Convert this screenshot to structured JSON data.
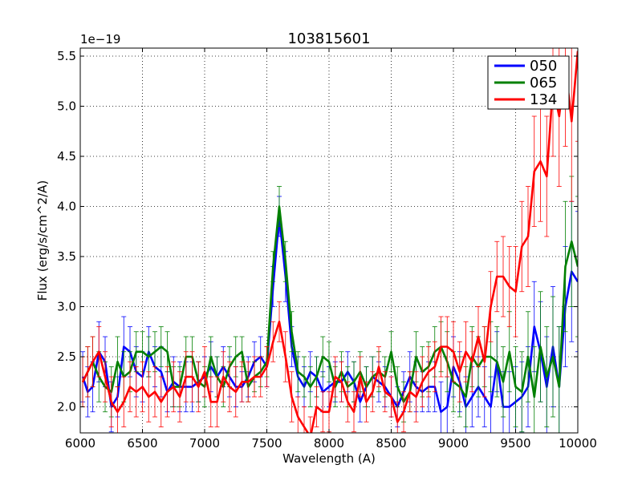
{
  "chart_data": {
    "type": "line",
    "title": "103815601",
    "xlabel": "Wavelength (A)",
    "ylabel": "Flux (erg/s/cm^2/A)",
    "y_scale_label": "1e−19",
    "xlim": [
      6000,
      10000
    ],
    "ylim": [
      1.74,
      5.58
    ],
    "xticks": [
      6000,
      6500,
      7000,
      7500,
      8000,
      8500,
      9000,
      9500,
      10000
    ],
    "xtick_labels": [
      "6000",
      "6500",
      "7000",
      "7500",
      "8000",
      "8500",
      "9000",
      "9500",
      "10000"
    ],
    "yticks": [
      2.0,
      2.5,
      3.0,
      3.5,
      4.0,
      4.5,
      5.0,
      5.5
    ],
    "ytick_labels": [
      "2.0",
      "2.5",
      "3.0",
      "3.5",
      "4.0",
      "4.5",
      "5.0",
      "5.5"
    ],
    "grid": true,
    "legend_position": "top-right",
    "series": [
      {
        "name": "050",
        "color": "#0000ff",
        "x": [
          6020,
          6060,
          6100,
          6150,
          6200,
          6250,
          6300,
          6350,
          6400,
          6450,
          6500,
          6550,
          6600,
          6650,
          6700,
          6750,
          6800,
          6850,
          6900,
          6950,
          7000,
          7050,
          7100,
          7150,
          7200,
          7250,
          7300,
          7350,
          7400,
          7450,
          7500,
          7550,
          7600,
          7650,
          7700,
          7750,
          7800,
          7850,
          7900,
          7950,
          8000,
          8050,
          8100,
          8150,
          8200,
          8250,
          8300,
          8350,
          8400,
          8450,
          8500,
          8550,
          8600,
          8650,
          8700,
          8750,
          8800,
          8850,
          8900,
          8950,
          9000,
          9050,
          9100,
          9150,
          9200,
          9250,
          9300,
          9350,
          9400,
          9450,
          9500,
          9550,
          9600,
          9650,
          9700,
          9750,
          9800,
          9850,
          9900,
          9950,
          10000
        ],
        "values": [
          2.3,
          2.15,
          2.2,
          2.55,
          2.45,
          2.0,
          2.1,
          2.6,
          2.55,
          2.35,
          2.3,
          2.55,
          2.4,
          2.35,
          2.15,
          2.25,
          2.2,
          2.2,
          2.2,
          2.25,
          2.3,
          2.4,
          2.3,
          2.4,
          2.3,
          2.2,
          2.2,
          2.3,
          2.45,
          2.5,
          2.4,
          3.2,
          3.9,
          3.3,
          2.6,
          2.3,
          2.2,
          2.35,
          2.3,
          2.15,
          2.2,
          2.25,
          2.25,
          2.35,
          2.25,
          2.05,
          2.2,
          2.3,
          2.25,
          2.2,
          2.1,
          2.0,
          2.15,
          2.3,
          2.2,
          2.15,
          2.2,
          2.2,
          1.95,
          2.0,
          2.4,
          2.25,
          2.0,
          2.1,
          2.2,
          2.1,
          2.0,
          2.45,
          2.0,
          2.0,
          2.05,
          2.1,
          2.2,
          2.8,
          2.55,
          2.2,
          2.6,
          2.2,
          3.0,
          3.35,
          3.25
        ],
        "errors": [
          0.25,
          0.25,
          0.25,
          0.3,
          0.25,
          0.25,
          0.2,
          0.3,
          0.25,
          0.25,
          0.25,
          0.25,
          0.2,
          0.25,
          0.2,
          0.25,
          0.25,
          0.25,
          0.25,
          0.2,
          0.2,
          0.25,
          0.2,
          0.2,
          0.2,
          0.2,
          0.15,
          0.2,
          0.2,
          0.2,
          0.2,
          0.2,
          0.2,
          0.25,
          0.2,
          0.2,
          0.2,
          0.2,
          0.2,
          0.2,
          0.2,
          0.2,
          0.2,
          0.2,
          0.2,
          0.2,
          0.2,
          0.2,
          0.2,
          0.2,
          0.2,
          0.2,
          0.2,
          0.25,
          0.25,
          0.2,
          0.25,
          0.25,
          0.3,
          0.3,
          0.3,
          0.3,
          0.3,
          0.3,
          0.3,
          0.3,
          0.3,
          0.3,
          0.35,
          0.35,
          0.35,
          0.35,
          0.4,
          0.45,
          0.5,
          0.5,
          0.6,
          0.6,
          0.6,
          0.7,
          0.7
        ]
      },
      {
        "name": "065",
        "color": "#008000",
        "x": [
          6020,
          6060,
          6100,
          6150,
          6200,
          6250,
          6300,
          6350,
          6400,
          6450,
          6500,
          6550,
          6600,
          6650,
          6700,
          6750,
          6800,
          6850,
          6900,
          6950,
          7000,
          7050,
          7100,
          7150,
          7200,
          7250,
          7300,
          7350,
          7400,
          7450,
          7500,
          7550,
          7600,
          7650,
          7700,
          7750,
          7800,
          7850,
          7900,
          7950,
          8000,
          8050,
          8100,
          8150,
          8200,
          8250,
          8300,
          8350,
          8400,
          8450,
          8500,
          8550,
          8600,
          8650,
          8700,
          8750,
          8800,
          8850,
          8900,
          8950,
          9000,
          9050,
          9100,
          9150,
          9200,
          9250,
          9300,
          9350,
          9400,
          9450,
          9500,
          9550,
          9600,
          9650,
          9700,
          9750,
          9800,
          9850,
          9900,
          9950,
          10000
        ],
        "values": [
          2.25,
          2.35,
          2.45,
          2.3,
          2.2,
          2.15,
          2.45,
          2.3,
          2.35,
          2.55,
          2.55,
          2.5,
          2.55,
          2.6,
          2.55,
          2.2,
          2.2,
          2.5,
          2.5,
          2.25,
          2.2,
          2.5,
          2.3,
          2.2,
          2.4,
          2.5,
          2.55,
          2.2,
          2.3,
          2.35,
          2.45,
          3.4,
          4.0,
          3.45,
          2.75,
          2.35,
          2.3,
          2.2,
          2.3,
          2.5,
          2.45,
          2.2,
          2.35,
          2.2,
          2.25,
          2.35,
          2.2,
          2.3,
          2.35,
          2.3,
          2.55,
          2.2,
          2.05,
          2.15,
          2.5,
          2.35,
          2.4,
          2.55,
          2.6,
          2.45,
          2.25,
          2.2,
          2.1,
          2.5,
          2.4,
          2.5,
          2.5,
          2.45,
          2.25,
          2.55,
          2.2,
          2.15,
          2.5,
          2.1,
          2.6,
          2.3,
          2.5,
          2.2,
          3.4,
          3.65,
          3.4
        ],
        "errors": [
          0.25,
          0.25,
          0.25,
          0.25,
          0.25,
          0.25,
          0.25,
          0.25,
          0.2,
          0.2,
          0.2,
          0.2,
          0.2,
          0.2,
          0.2,
          0.2,
          0.2,
          0.2,
          0.2,
          0.2,
          0.2,
          0.2,
          0.2,
          0.2,
          0.2,
          0.2,
          0.15,
          0.15,
          0.15,
          0.15,
          0.15,
          0.15,
          0.2,
          0.2,
          0.2,
          0.2,
          0.2,
          0.2,
          0.2,
          0.2,
          0.2,
          0.2,
          0.2,
          0.2,
          0.2,
          0.2,
          0.2,
          0.2,
          0.2,
          0.2,
          0.2,
          0.2,
          0.2,
          0.2,
          0.25,
          0.25,
          0.25,
          0.25,
          0.25,
          0.3,
          0.3,
          0.3,
          0.3,
          0.3,
          0.3,
          0.3,
          0.35,
          0.35,
          0.35,
          0.4,
          0.4,
          0.4,
          0.45,
          0.5,
          0.55,
          0.5,
          0.6,
          0.6,
          0.65,
          0.65,
          0.7
        ]
      },
      {
        "name": "134",
        "color": "#ff0000",
        "x": [
          6020,
          6060,
          6100,
          6150,
          6200,
          6250,
          6300,
          6350,
          6400,
          6450,
          6500,
          6550,
          6600,
          6650,
          6700,
          6750,
          6800,
          6850,
          6900,
          6950,
          7000,
          7050,
          7100,
          7150,
          7200,
          7250,
          7300,
          7350,
          7400,
          7450,
          7500,
          7550,
          7600,
          7650,
          7700,
          7750,
          7800,
          7850,
          7900,
          7950,
          8000,
          8050,
          8100,
          8150,
          8200,
          8250,
          8300,
          8350,
          8400,
          8450,
          8500,
          8550,
          8600,
          8650,
          8700,
          8750,
          8800,
          8850,
          8900,
          8950,
          9000,
          9050,
          9100,
          9150,
          9200,
          9250,
          9300,
          9350,
          9400,
          9450,
          9500,
          9550,
          9600,
          9650,
          9700,
          9750,
          9800,
          9850,
          9900,
          9950,
          10000
        ],
        "values": [
          2.25,
          2.35,
          2.45,
          2.55,
          2.3,
          2.05,
          1.95,
          2.05,
          2.2,
          2.15,
          2.2,
          2.1,
          2.15,
          2.05,
          2.15,
          2.2,
          2.1,
          2.3,
          2.3,
          2.2,
          2.35,
          2.05,
          2.05,
          2.3,
          2.2,
          2.15,
          2.25,
          2.25,
          2.3,
          2.3,
          2.4,
          2.65,
          2.85,
          2.5,
          2.1,
          1.9,
          1.8,
          1.7,
          2.0,
          1.95,
          1.95,
          2.3,
          2.25,
          2.05,
          1.95,
          2.3,
          2.05,
          2.15,
          2.4,
          2.15,
          2.1,
          1.85,
          1.95,
          2.15,
          2.1,
          2.25,
          2.35,
          2.4,
          2.6,
          2.6,
          2.55,
          2.35,
          2.55,
          2.45,
          2.7,
          2.45,
          3.0,
          3.3,
          3.3,
          3.2,
          3.15,
          3.6,
          3.7,
          4.35,
          4.45,
          4.3,
          5.2,
          4.9,
          5.4,
          4.85,
          5.55
        ],
        "errors": [
          0.25,
          0.25,
          0.25,
          0.25,
          0.25,
          0.25,
          0.25,
          0.25,
          0.25,
          0.25,
          0.25,
          0.25,
          0.25,
          0.25,
          0.25,
          0.25,
          0.25,
          0.25,
          0.25,
          0.25,
          0.25,
          0.25,
          0.25,
          0.25,
          0.25,
          0.25,
          0.2,
          0.2,
          0.2,
          0.2,
          0.2,
          0.2,
          0.2,
          0.25,
          0.25,
          0.2,
          0.2,
          0.2,
          0.2,
          0.2,
          0.2,
          0.2,
          0.2,
          0.2,
          0.2,
          0.2,
          0.2,
          0.2,
          0.2,
          0.2,
          0.2,
          0.2,
          0.2,
          0.2,
          0.25,
          0.25,
          0.25,
          0.25,
          0.3,
          0.3,
          0.3,
          0.3,
          0.3,
          0.3,
          0.3,
          0.35,
          0.35,
          0.35,
          0.4,
          0.4,
          0.45,
          0.45,
          0.5,
          0.55,
          0.6,
          0.6,
          0.7,
          0.7,
          0.8,
          0.8,
          0.9
        ]
      }
    ]
  }
}
